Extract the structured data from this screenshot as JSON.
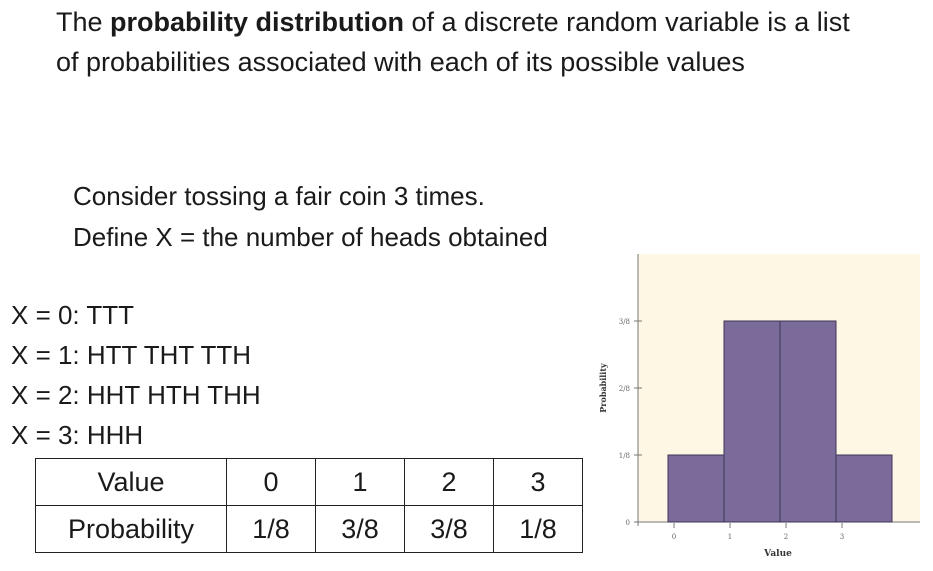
{
  "intro": {
    "before": "The ",
    "bold": "probability distribution",
    "after": " of a discrete random variable is a list of probabilities associated with each of its possible values"
  },
  "example": {
    "line1": "Consider tossing a fair coin 3 times.",
    "line2": "Define X = the number of heads obtained"
  },
  "outcomes": [
    "X = 0: TTT",
    "X = 1: HTT THT TTH",
    "X = 2: HHT HTH THH",
    "X = 3: HHH"
  ],
  "table": {
    "value_label": "Value",
    "probability_label": "Probability",
    "values": [
      "0",
      "1",
      "2",
      "3"
    ],
    "probabilities": [
      "1/8",
      "3/8",
      "3/8",
      "1/8"
    ]
  },
  "chart_data": {
    "type": "bar",
    "categories": [
      "0",
      "1",
      "2",
      "3"
    ],
    "values": [
      0.125,
      0.375,
      0.375,
      0.125
    ],
    "xlabel": "Value",
    "ylabel": "Probability",
    "yticks": [
      "0",
      "1/8",
      "2/8",
      "3/8"
    ],
    "ylim": [
      0,
      0.5
    ],
    "bar_color": "#7b6b9a",
    "background_color": "#fdf7e4",
    "grid": false,
    "legend": "none"
  }
}
